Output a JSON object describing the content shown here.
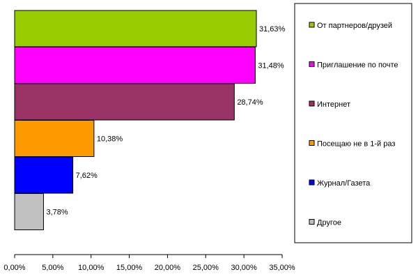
{
  "chart_data": {
    "type": "bar",
    "orientation": "horizontal",
    "categories": [
      "От партнеров/друзей",
      "Приглашение по почте",
      "Интернет",
      "Посещаю не в 1-й раз",
      "Журнал/Газета",
      "Другое"
    ],
    "values": [
      31.63,
      31.48,
      28.74,
      10.38,
      7.62,
      3.78
    ],
    "value_labels": [
      "31,63%",
      "31,48%",
      "28,74%",
      "10,38%",
      "7,62%",
      "3,78%"
    ],
    "colors": [
      "#99cc00",
      "#ff00ff",
      "#993366",
      "#ff9900",
      "#0000ff",
      "#c0c0c0"
    ],
    "xlim": [
      0,
      35
    ],
    "xticks": [
      0,
      5,
      10,
      15,
      20,
      25,
      30,
      35
    ],
    "xtick_labels": [
      "0,00%",
      "5,00%",
      "10,00%",
      "15,00%",
      "20,00%",
      "25,00%",
      "30,00%",
      "35,00%"
    ],
    "grid": false,
    "legend": {
      "placement": "right",
      "entries": [
        "От партнеров/друзей",
        "Приглашение по почте",
        "Интернет",
        "Посещаю не в 1-й раз",
        "Журнал/Газета",
        "Другое"
      ]
    }
  }
}
